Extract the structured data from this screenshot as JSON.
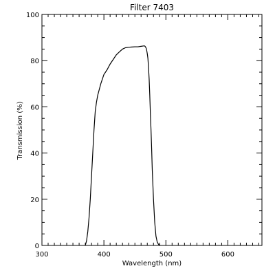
{
  "chart_data": {
    "type": "line",
    "title": "Filter 7403",
    "xlabel": "Wavelength (nm)",
    "ylabel": "Transmission (%)",
    "xlim": [
      300,
      655
    ],
    "ylim": [
      0,
      100
    ],
    "x_ticks": [
      300,
      400,
      500,
      600
    ],
    "y_ticks": [
      0,
      20,
      40,
      60,
      80,
      100
    ],
    "x_minor_step": 10,
    "y_minor_step": 5,
    "grid": false,
    "legend": "none",
    "line_color": "#000000",
    "series": [
      {
        "x": [
          370,
          372,
          374,
          376,
          378,
          380,
          382,
          384,
          386,
          388,
          390,
          395,
          400,
          405,
          410,
          415,
          420,
          425,
          430,
          435,
          440,
          445,
          450,
          455,
          460,
          465,
          466,
          467,
          468,
          469,
          470,
          471,
          472,
          473,
          474,
          475,
          476,
          477,
          478,
          480,
          482,
          484,
          486,
          488,
          490,
          491
        ],
        "y": [
          0,
          2,
          6,
          12,
          20,
          30,
          40,
          50,
          58,
          62,
          65,
          70,
          74,
          76,
          78.5,
          80.5,
          82.5,
          83.8,
          85,
          85.6,
          85.8,
          85.9,
          86,
          86,
          86.2,
          86.4,
          86.3,
          86,
          85.5,
          84.5,
          83,
          81,
          77,
          72,
          65,
          57,
          50,
          42,
          33,
          20,
          10,
          4,
          1.5,
          0.5,
          0.1,
          0
        ]
      }
    ]
  }
}
